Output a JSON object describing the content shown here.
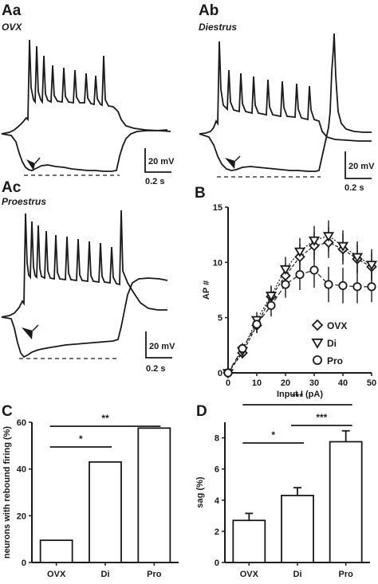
{
  "panels": {
    "aa": {
      "label": "Aa",
      "condition": "OVX"
    },
    "ab": {
      "label": "Ab",
      "condition": "Diestrus"
    },
    "ac": {
      "label": "Ac",
      "condition": "Proestrus"
    },
    "b": {
      "label": "B"
    },
    "c": {
      "label": "C"
    },
    "d": {
      "label": "D"
    }
  },
  "scale_bars": {
    "voltage": "20 mV",
    "time": "0.2 s"
  },
  "chart_data": [
    {
      "panel": "B",
      "type": "line",
      "xlabel": "Input I (pA)",
      "ylabel": "AP #",
      "xlim": [
        0,
        50
      ],
      "ylim": [
        0,
        15
      ],
      "xticks": [
        0,
        10,
        20,
        30,
        40,
        50
      ],
      "yticks": [
        0,
        5,
        10,
        15
      ],
      "legend_position": "bottom-right",
      "x": [
        0,
        5,
        10,
        15,
        20,
        25,
        30,
        35,
        40,
        45,
        50
      ],
      "series": [
        {
          "name": "OVX",
          "marker": "diamond",
          "values": [
            0,
            1.8,
            4.3,
            6.9,
            8.8,
            10.5,
            11.5,
            11.8,
            11.2,
            10.3,
            9.6
          ],
          "errors": [
            0,
            0.5,
            0.7,
            0.9,
            1.1,
            1.2,
            1.3,
            1.4,
            1.4,
            1.3,
            1.3
          ]
        },
        {
          "name": "Di",
          "marker": "triangle-down",
          "values": [
            0,
            2.0,
            4.8,
            7.0,
            9.4,
            11.0,
            12.0,
            12.4,
            11.5,
            10.5,
            9.8
          ],
          "errors": [
            0,
            0.5,
            0.7,
            0.9,
            1.1,
            1.2,
            1.3,
            1.4,
            1.4,
            1.4,
            1.4
          ]
        },
        {
          "name": "Pro",
          "marker": "circle",
          "values": [
            0,
            2.2,
            4.4,
            6.1,
            8.0,
            8.9,
            9.3,
            8.0,
            7.9,
            7.8,
            7.8
          ],
          "errors": [
            0,
            0.5,
            0.8,
            1.0,
            1.2,
            1.4,
            1.6,
            1.6,
            1.6,
            1.5,
            1.4
          ]
        }
      ]
    },
    {
      "panel": "C",
      "type": "bar",
      "categories": [
        "OVX",
        "Di",
        "Pro"
      ],
      "values": [
        9.5,
        43,
        57.5
      ],
      "ylabel": "neurons with rebound firing (%)",
      "ylim": [
        0,
        60
      ],
      "yticks": [
        0,
        20,
        40,
        60
      ],
      "significance": [
        {
          "from": 0,
          "to": 1,
          "label": "*"
        },
        {
          "from": 0,
          "to": 2,
          "label": "**"
        }
      ]
    },
    {
      "panel": "D",
      "type": "bar",
      "categories": [
        "OVX",
        "Di",
        "Pro"
      ],
      "values": [
        2.7,
        4.3,
        7.75
      ],
      "errors": [
        0.45,
        0.5,
        0.7
      ],
      "ylabel": "sag (%)",
      "ylim": [
        0,
        9
      ],
      "yticks": [
        0,
        2,
        4,
        6,
        8
      ],
      "significance": [
        {
          "from": 0,
          "to": 1,
          "label": "*"
        },
        {
          "from": 1,
          "to": 2,
          "label": "***"
        },
        {
          "from": 0,
          "to": 2,
          "label": "***"
        }
      ]
    }
  ]
}
